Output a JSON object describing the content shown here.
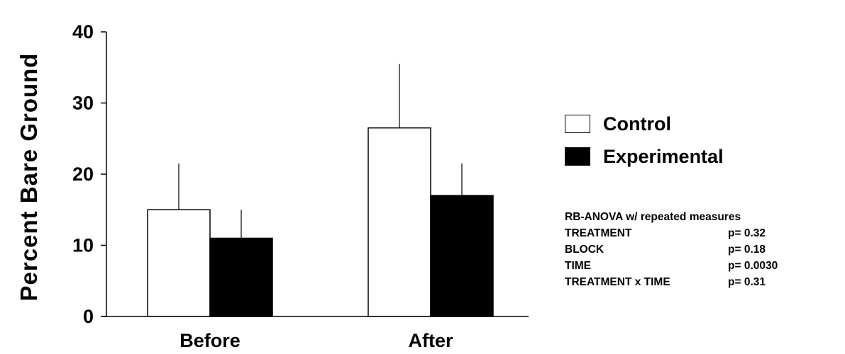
{
  "chart_data": {
    "type": "bar",
    "ylabel": "Percent  Bare Ground",
    "xlabel": "",
    "ylim": [
      0,
      40
    ],
    "yticks": [
      0,
      10,
      20,
      30,
      40
    ],
    "categories": [
      "Before",
      "After"
    ],
    "series": [
      {
        "name": "Control",
        "color": "#ffffff",
        "values": [
          15,
          26.5
        ],
        "errors": [
          6.5,
          9
        ]
      },
      {
        "name": "Experimental",
        "color": "#000000",
        "values": [
          11,
          17
        ],
        "errors": [
          4,
          4.5
        ]
      }
    ],
    "grid": false,
    "legend": "right"
  },
  "stats": {
    "title": "RB-ANOVA w/ repeated measures",
    "rows": [
      {
        "term": "TREATMENT",
        "p": "p= 0.32"
      },
      {
        "term": "BLOCK",
        "p": "p= 0.18"
      },
      {
        "term": "TIME",
        "p": "p= 0.0030"
      },
      {
        "term": "TREATMENT x TIME",
        "p": "p= 0.31"
      }
    ]
  }
}
